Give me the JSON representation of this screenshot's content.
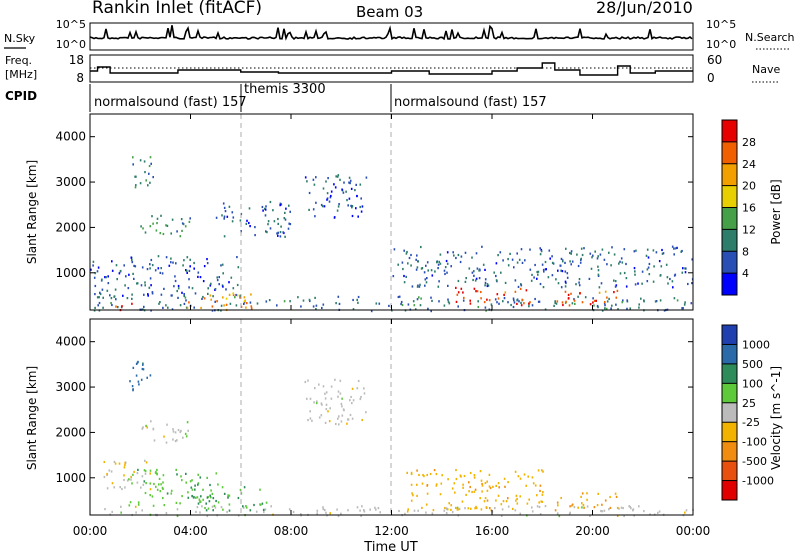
{
  "header": {
    "station": "Rankin Inlet (fitACF)",
    "beam": "Beam 03",
    "date": "28/Jun/2010"
  },
  "noise_panel": {
    "left_label": "N.Sky",
    "left_ticks": [
      "10^5",
      "10^0"
    ],
    "right_ticks": [
      "10^5",
      "10^0"
    ],
    "right_label": "N.Search"
  },
  "freq_panel": {
    "left_label_1": "Freq.",
    "left_label_2": "[MHz]",
    "left_ticks": [
      "18",
      "8"
    ],
    "right_ticks": [
      "60",
      "0"
    ],
    "right_label": "Nave"
  },
  "cpid": {
    "label": "CPID",
    "segments": [
      {
        "name": "normalsound (fast) 157",
        "start_hour": 0,
        "end_hour": 6
      },
      {
        "name": "themis 3300",
        "start_hour": 6,
        "end_hour": 12
      },
      {
        "name": "normalsound (fast) 157",
        "start_hour": 12,
        "end_hour": 24
      }
    ]
  },
  "colors": {
    "power_scale": [
      "#0000ff",
      "#2a4fb4",
      "#2e7d6a",
      "#45a047",
      "#e8d000",
      "#f2a000",
      "#f06000",
      "#e60000"
    ],
    "velocity_scale": [
      "#2040b0",
      "#2a6aa8",
      "#2e8c5a",
      "#5ec93a",
      "#bbbbbb",
      "#f2b200",
      "#f08c10",
      "#e85010",
      "#e00000"
    ]
  },
  "chart_data": [
    {
      "type": "heatmap",
      "panel": "power",
      "ylabel": "Slant Range [km]",
      "yticks": [
        1000,
        2000,
        3000,
        4000
      ],
      "ylim": [
        180,
        4500
      ],
      "xlim_hours": [
        0,
        24
      ],
      "colorbar": {
        "label": "Power [dB]",
        "ticks": [
          "28",
          "24",
          "20",
          "16",
          "12",
          "8",
          "4"
        ],
        "range": [
          0,
          30
        ]
      },
      "echo_regions": [
        {
          "t0": 0,
          "t1": 24,
          "r0": 180,
          "r1": 500,
          "value": 8
        },
        {
          "t0": 3.8,
          "t1": 6.5,
          "r0": 200,
          "r1": 600,
          "value": 22
        },
        {
          "t0": 1.0,
          "t1": 1.8,
          "r0": 200,
          "r1": 400,
          "value": 26
        },
        {
          "t0": 14.5,
          "t1": 17.5,
          "r0": 300,
          "r1": 700,
          "value": 26
        },
        {
          "t0": 18.5,
          "t1": 21.0,
          "r0": 300,
          "r1": 700,
          "value": 26
        },
        {
          "t0": 1.5,
          "t1": 2.5,
          "r0": 2900,
          "r1": 3600,
          "value": 10
        },
        {
          "t0": 2.0,
          "t1": 4.0,
          "r0": 1800,
          "r1": 2300,
          "value": 10
        },
        {
          "t0": 5.0,
          "t1": 8.0,
          "r0": 1800,
          "r1": 2600,
          "value": 6
        },
        {
          "t0": 8.5,
          "t1": 11.0,
          "r0": 2200,
          "r1": 3200,
          "value": 6
        },
        {
          "t0": 12.0,
          "t1": 24.0,
          "r0": 700,
          "r1": 1600,
          "value": 7
        },
        {
          "t0": 0.0,
          "t1": 6.0,
          "r0": 500,
          "r1": 1400,
          "value": 6
        }
      ]
    },
    {
      "type": "heatmap",
      "panel": "velocity",
      "ylabel": "Slant Range [km]",
      "xlabel": "Time UT",
      "xticks": [
        "00:00",
        "04:00",
        "08:00",
        "12:00",
        "16:00",
        "20:00",
        "00:00"
      ],
      "yticks": [
        1000,
        2000,
        3000,
        4000
      ],
      "ylim": [
        180,
        4500
      ],
      "xlim_hours": [
        0,
        24
      ],
      "colorbar": {
        "label": "Velocity [m s^-1]",
        "ticks": [
          "1000",
          "500",
          "100",
          "25",
          "-25",
          "-100",
          "-500",
          "-1000"
        ],
        "range": [
          -1200,
          1200
        ]
      },
      "echo_regions": [
        {
          "t0": 0,
          "t1": 24,
          "r0": 180,
          "r1": 400,
          "value": 0
        },
        {
          "t0": 1.5,
          "t1": 2.5,
          "r0": 2900,
          "r1": 3600,
          "value": 800
        },
        {
          "t0": 2.0,
          "t1": 4.0,
          "r0": 1800,
          "r1": 2300,
          "value": 0
        },
        {
          "t0": 0.5,
          "t1": 2.5,
          "r0": 700,
          "r1": 1400,
          "value": -150
        },
        {
          "t0": 1.5,
          "t1": 5.0,
          "r0": 400,
          "r1": 1200,
          "value": 300
        },
        {
          "t0": 4.0,
          "t1": 7.0,
          "r0": 300,
          "r1": 900,
          "value": 400
        },
        {
          "t0": 12.5,
          "t1": 18.0,
          "r0": 300,
          "r1": 1200,
          "value": -300
        },
        {
          "t0": 18.5,
          "t1": 21.0,
          "r0": 300,
          "r1": 700,
          "value": -400
        },
        {
          "t0": 8.5,
          "t1": 11.0,
          "r0": 2200,
          "r1": 3200,
          "value": 0
        }
      ]
    }
  ]
}
